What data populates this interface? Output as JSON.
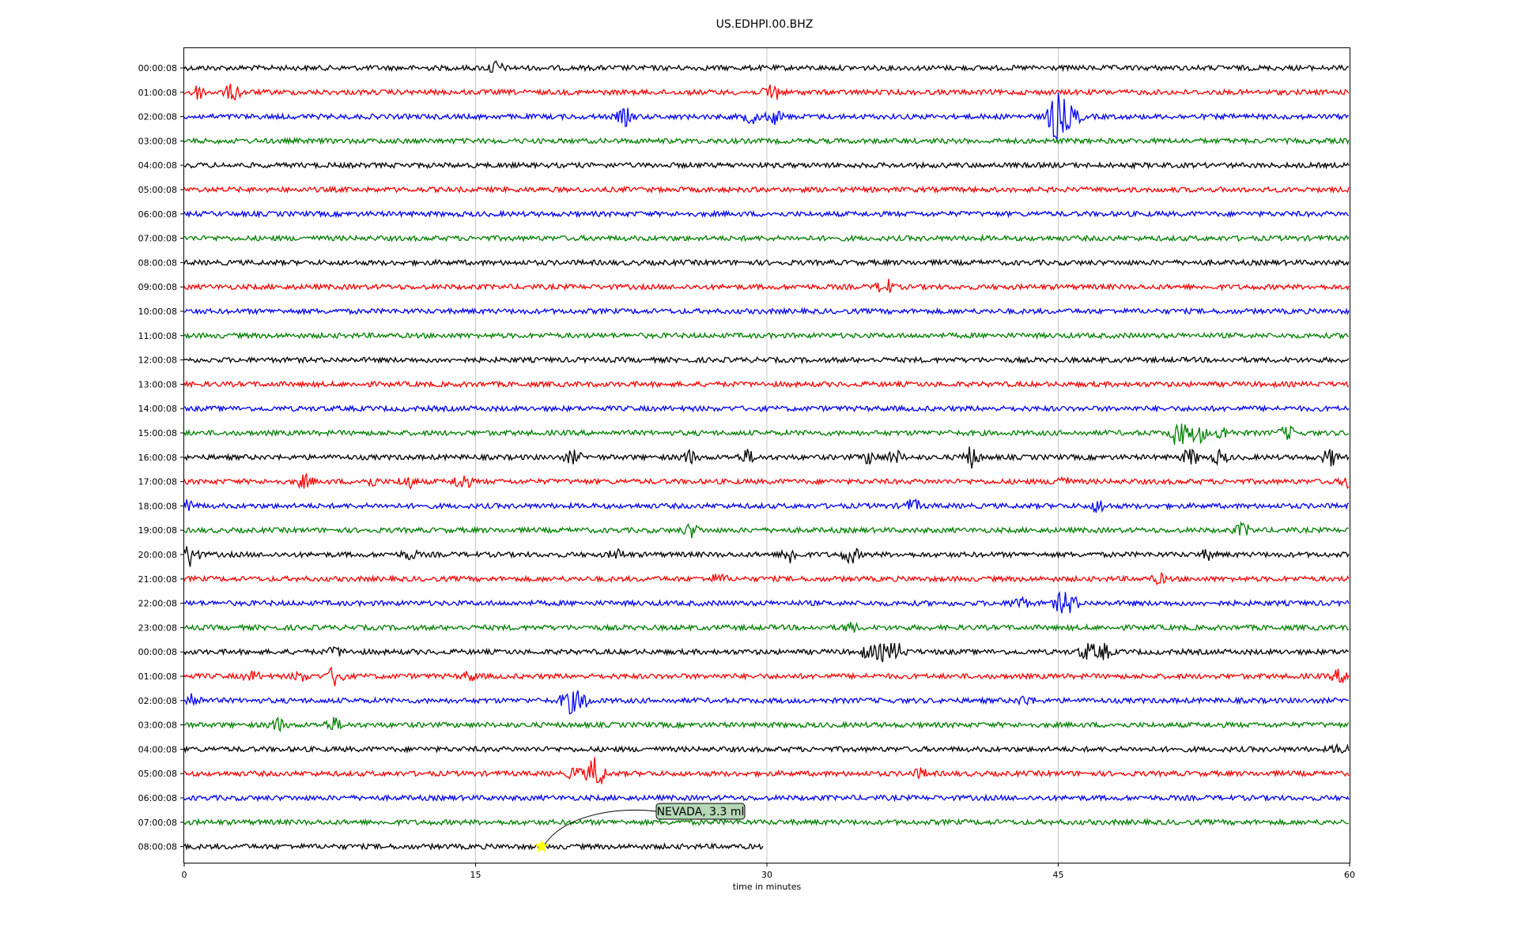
{
  "chart_data": {
    "type": "line",
    "title": "US.EDHPI.00.BHZ",
    "xlabel": "time in minutes",
    "ylabel": "",
    "xlim": [
      0,
      60
    ],
    "xticks": [
      0,
      15,
      30,
      45,
      60
    ],
    "grid": "vertical",
    "row_colors": [
      "#000000",
      "#ff0000",
      "#0000ff",
      "#008000"
    ],
    "rows": [
      {
        "label": "00:00:08",
        "end": 60,
        "events": [
          [
            16,
            3
          ]
        ]
      },
      {
        "label": "01:00:08",
        "end": 60,
        "events": [
          [
            0.7,
            3
          ],
          [
            2.5,
            4
          ],
          [
            30.3,
            5
          ]
        ]
      },
      {
        "label": "02:00:08",
        "end": 60,
        "events": [
          [
            22.7,
            4
          ],
          [
            29.2,
            3
          ],
          [
            30.4,
            3
          ],
          [
            44.8,
            9
          ],
          [
            45.2,
            7
          ],
          [
            45.8,
            4
          ]
        ]
      },
      {
        "label": "03:00:08",
        "end": 60,
        "events": []
      },
      {
        "label": "04:00:08",
        "end": 60,
        "events": []
      },
      {
        "label": "05:00:08",
        "end": 60,
        "events": []
      },
      {
        "label": "06:00:08",
        "end": 60,
        "events": []
      },
      {
        "label": "07:00:08",
        "end": 60,
        "events": []
      },
      {
        "label": "08:00:08",
        "end": 60,
        "events": []
      },
      {
        "label": "09:00:08",
        "end": 60,
        "events": [
          [
            36.1,
            4
          ]
        ]
      },
      {
        "label": "10:00:08",
        "end": 60,
        "events": []
      },
      {
        "label": "11:00:08",
        "end": 60,
        "events": []
      },
      {
        "label": "12:00:08",
        "end": 60,
        "events": []
      },
      {
        "label": "13:00:08",
        "end": 60,
        "events": []
      },
      {
        "label": "14:00:08",
        "end": 60,
        "events": []
      },
      {
        "label": "15:00:08",
        "end": 60,
        "events": [
          [
            51.2,
            7
          ],
          [
            52.2,
            5
          ],
          [
            53.5,
            3
          ],
          [
            56.8,
            3
          ]
        ]
      },
      {
        "label": "16:00:08",
        "end": 60,
        "events": [
          [
            20,
            3
          ],
          [
            26,
            3
          ],
          [
            29,
            3
          ],
          [
            35.3,
            3
          ],
          [
            36.6,
            3
          ],
          [
            40.5,
            5
          ],
          [
            51.8,
            4
          ],
          [
            53.3,
            3
          ],
          [
            59,
            4
          ]
        ]
      },
      {
        "label": "17:00:08",
        "end": 60,
        "events": [
          [
            6.2,
            3
          ],
          [
            9.6,
            2
          ],
          [
            11.5,
            3
          ],
          [
            14.3,
            4
          ],
          [
            45.1,
            3
          ],
          [
            60,
            3
          ]
        ]
      },
      {
        "label": "18:00:08",
        "end": 60,
        "events": [
          [
            0.1,
            4
          ],
          [
            37.5,
            3
          ],
          [
            47.1,
            3
          ]
        ]
      },
      {
        "label": "19:00:08",
        "end": 60,
        "events": [
          [
            26.1,
            3
          ],
          [
            54.5,
            3
          ]
        ]
      },
      {
        "label": "20:00:08",
        "end": 60,
        "events": [
          [
            0.3,
            6
          ],
          [
            11.6,
            2
          ],
          [
            22.3,
            2
          ],
          [
            31.2,
            4
          ],
          [
            34.3,
            4
          ],
          [
            52.7,
            2
          ]
        ]
      },
      {
        "label": "21:00:08",
        "end": 60,
        "events": [
          [
            27.5,
            2
          ],
          [
            50.2,
            2
          ]
        ]
      },
      {
        "label": "22:00:08",
        "end": 60,
        "events": [
          [
            43,
            3
          ],
          [
            45.2,
            5
          ],
          [
            45.7,
            3
          ]
        ]
      },
      {
        "label": "23:00:08",
        "end": 60,
        "events": [
          [
            34.3,
            2
          ]
        ]
      },
      {
        "label": "00:00:08",
        "end": 60,
        "events": [
          [
            7.8,
            2
          ],
          [
            35.2,
            3
          ],
          [
            36,
            4
          ],
          [
            36.7,
            4
          ],
          [
            46.5,
            4
          ],
          [
            47.3,
            4
          ]
        ]
      },
      {
        "label": "01:00:08",
        "end": 60,
        "events": [
          [
            3.5,
            2
          ],
          [
            6,
            2
          ],
          [
            7.8,
            5
          ],
          [
            14.7,
            2
          ],
          [
            59.5,
            3
          ]
        ]
      },
      {
        "label": "02:00:08",
        "end": 60,
        "events": [
          [
            0.4,
            4
          ],
          [
            19.8,
            6
          ],
          [
            20.5,
            4
          ],
          [
            43.3,
            2
          ]
        ]
      },
      {
        "label": "03:00:08",
        "end": 60,
        "events": [
          [
            4.8,
            3
          ],
          [
            7.7,
            3
          ]
        ]
      },
      {
        "label": "04:00:08",
        "end": 60,
        "events": [
          [
            59.5,
            2
          ]
        ]
      },
      {
        "label": "05:00:08",
        "end": 60,
        "events": [
          [
            20.2,
            3
          ],
          [
            21.2,
            9
          ],
          [
            37.9,
            2
          ]
        ]
      },
      {
        "label": "06:00:08",
        "end": 60,
        "events": []
      },
      {
        "label": "07:00:08",
        "end": 60,
        "events": []
      },
      {
        "label": "08:00:08",
        "end": 29.8,
        "events": []
      }
    ],
    "annotation": {
      "text": "NEVADA, 3.3 ml",
      "row": 32,
      "x": 18.4,
      "marker": "star",
      "marker_color": "#ffff00",
      "box_color": "#b6d7b6"
    }
  }
}
